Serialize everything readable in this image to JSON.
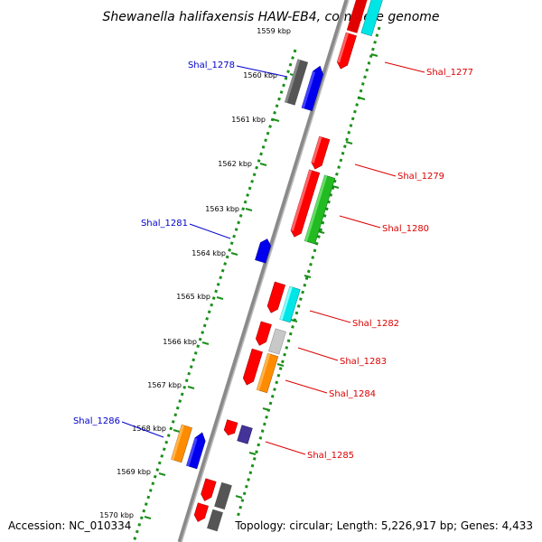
{
  "title": "Shewanella halifaxensis HAW-EB4, complete genome",
  "footer": {
    "accession": "Accession: NC_010334",
    "topology": "Topology: circular; Length: 5,226,917 bp; Genes: 4,433"
  },
  "colors": {
    "backbone": "#8a8a8a",
    "ticks": "#1a8f1a",
    "forward_label": "#0000cc",
    "reverse_label": "#dd0000"
  },
  "ruler": {
    "labels": [
      "1559 kbp",
      "1560 kbp",
      "1561 kbp",
      "1562 kbp",
      "1563 kbp",
      "1564 kbp",
      "1565 kbp",
      "1566 kbp",
      "1567 kbp",
      "1568 kbp",
      "1569 kbp",
      "1570 kbp"
    ]
  },
  "gene_labels": {
    "shal_1277": "Shal_1277",
    "shal_1278": "Shal_1278",
    "shal_1279": "Shal_1279",
    "shal_1280": "Shal_1280",
    "shal_1281": "Shal_1281",
    "shal_1282": "Shal_1282",
    "shal_1283": "Shal_1283",
    "shal_1284": "Shal_1284",
    "shal_1285": "Shal_1285",
    "shal_1286": "Shal_1286"
  }
}
